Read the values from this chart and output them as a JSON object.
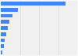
{
  "values": [
    85,
    22,
    15,
    11,
    9,
    7,
    5.5,
    4,
    2.5
  ],
  "bar_color": "#4285f4",
  "background_color": "#f8f8f8",
  "plot_bg_color": "#f0f0f0",
  "grid_color": "#d8d8d8",
  "bar_height": 0.6,
  "xlim": [
    0,
    100
  ]
}
